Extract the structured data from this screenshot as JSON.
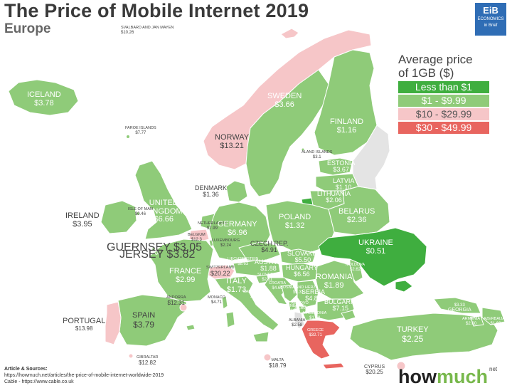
{
  "title": "The Price of Mobile Internet 2019",
  "subtitle": "Europe",
  "logo": {
    "line1": "EiB",
    "line2": "ECONOMICS",
    "line3": "in Brief"
  },
  "legend": {
    "title_line1": "Average price",
    "title_line2": "of 1GB ($)",
    "items": [
      {
        "label": "Less than $1",
        "color": "#3fae3f"
      },
      {
        "label": "$1 - $9.99",
        "color": "#8fcb79"
      },
      {
        "label": "$10 - $29.99",
        "color": "#f6c6c8"
      },
      {
        "label": "$30 - $49.99",
        "color": "#e8655f"
      }
    ]
  },
  "colors": {
    "green_dark": "#3fae3f",
    "green": "#8fcb79",
    "pink": "#f6c6c8",
    "red": "#e8655f",
    "border": "#ffffff"
  },
  "countries": {
    "svalbard": {
      "name": "Svalbard and Jan Mayen",
      "price": "$10.26"
    },
    "iceland": {
      "name": "Iceland",
      "price": "$3.78"
    },
    "faroe": {
      "name": "Faroe Islands",
      "price": "$7.77"
    },
    "sweden": {
      "name": "Sweden",
      "price": "$3.66"
    },
    "finland": {
      "name": "Finland",
      "price": "$1.16"
    },
    "norway": {
      "name": "Norway",
      "price": "$13.21"
    },
    "aland": {
      "name": "Aland Islands",
      "price": "$3.1"
    },
    "estonia": {
      "name": "Estonia",
      "price": "$3.67"
    },
    "latvia": {
      "name": "Latvia",
      "price": "$1.10"
    },
    "lithuania": {
      "name": "Lithuania",
      "price": "$2.06"
    },
    "denmark": {
      "name": "Denmark",
      "price": "$1.36"
    },
    "uk": {
      "name_line1": "United",
      "name_line2": "Kingdom",
      "price": "$6.66"
    },
    "isle_of_man": {
      "name": "Isle of Man",
      "price": "$0.46"
    },
    "ireland": {
      "name": "Ireland",
      "price": "$3.95"
    },
    "netherlands": {
      "name": "Netherlands",
      "price": "$7.99"
    },
    "belgium": {
      "name": "Belgium",
      "price": "$12.3"
    },
    "luxembourg": {
      "name": "Luxembourg",
      "price": "$2.24"
    },
    "germany": {
      "name": "Germany",
      "price": "$6.96"
    },
    "poland": {
      "name": "Poland",
      "price": "$1.32"
    },
    "belarus": {
      "name": "Belarus",
      "price": "$2.36"
    },
    "ukraine": {
      "name": "Ukraine",
      "price": "$0.51"
    },
    "czech": {
      "name": "Czech Rep.",
      "price": "$4.91"
    },
    "slovakia": {
      "name": "Slovakia",
      "price": "$5.50"
    },
    "liechtenstein": {
      "name": "Liechtenstein",
      "price": "$8.63"
    },
    "austria": {
      "name": "Austria",
      "price": "$1.88"
    },
    "hungary": {
      "name": "Hungary",
      "price": "$6.56"
    },
    "moldova": {
      "name": "Moldova",
      "price": "$2.62"
    },
    "guernsey": {
      "name": "Guernsey",
      "price": "$3.05"
    },
    "jersey": {
      "name": "Jersey",
      "price": "$3.82"
    },
    "france": {
      "name": "France",
      "price": "$2.99"
    },
    "switzerland": {
      "name": "Switzerland",
      "price": "$20.22"
    },
    "slovenia": {
      "name": "Slovenia",
      "price": "$2.61"
    },
    "croatia": {
      "name": "Croatia",
      "price": "$4.61"
    },
    "bosnia": {
      "name": "Bosnia and Herz.",
      "price": "$1.31"
    },
    "romania": {
      "name": "Romania",
      "price": "$1.89"
    },
    "italy": {
      "name": "Italy",
      "price": "$1.73"
    },
    "san_marino": {
      "name": "San Marino",
      "price": "$5.46"
    },
    "monaco": {
      "name": "Monaco",
      "price": "$4.71"
    },
    "serbia": {
      "name": "Serbia",
      "price": "$4.83"
    },
    "montenegro": {
      "name": "Montenegro",
      "price": "$3.12"
    },
    "kosovo": {
      "name": "Kosovo",
      "price": "$3.60"
    },
    "macedonia": {
      "name": "Macedonia",
      "price": "$1.48"
    },
    "albania": {
      "name": "Albania",
      "price": "$2.58"
    },
    "greece": {
      "name": "Greece",
      "price": "$32.71"
    },
    "bulgaria": {
      "name": "Bulgaria",
      "price": "$7.15"
    },
    "andorra": {
      "name": "Andorra",
      "price": "$12.31"
    },
    "portugal": {
      "name": "Portugal",
      "price": "$13.98"
    },
    "spain": {
      "name": "Spain",
      "price": "$3.79"
    },
    "gibraltar": {
      "name": "Gibraltar",
      "price": "$12.82"
    },
    "malta": {
      "name": "Malta",
      "price": "$18.79"
    },
    "cyprus": {
      "name": "Cyprus",
      "price": "$20.25"
    },
    "turkey": {
      "name": "Turkey",
      "price": "$2.25"
    },
    "georgia": {
      "name": "Georgia",
      "price": "$3.33"
    },
    "armenia": {
      "name": "Armenia",
      "price": "$2.60"
    },
    "azerbaijan": {
      "name": "Azerbaijan",
      "price": "$1.60"
    }
  },
  "sources": {
    "heading": "Article & Sources:",
    "line1": "https://howmuch.net/articles/the-price-of-mobile-internet-worldwide-2019",
    "line2": "Cable - https://www.cable.co.uk"
  },
  "brand": {
    "part1": "how",
    "part2": "much",
    "suffix": "net"
  }
}
